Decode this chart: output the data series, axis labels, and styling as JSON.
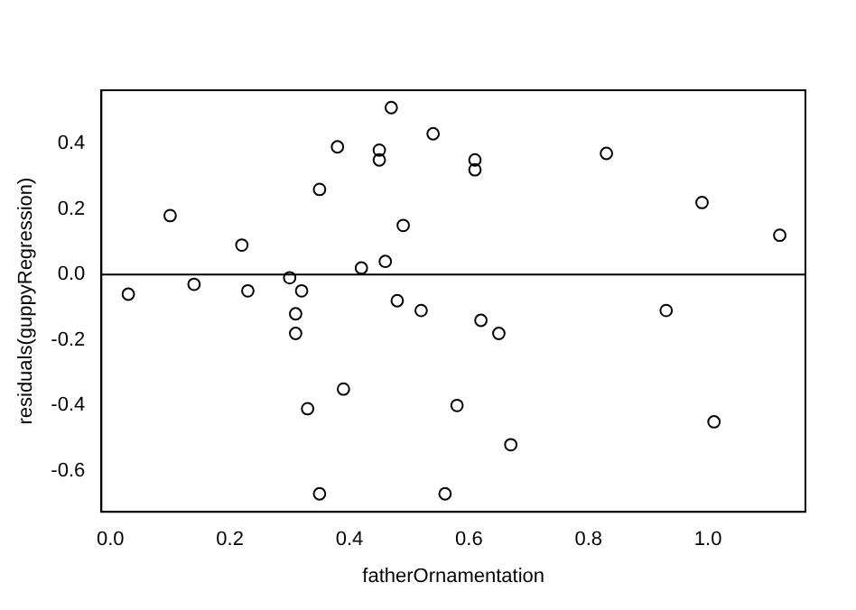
{
  "chart_data": {
    "type": "scatter",
    "xlabel": "fatherOrnamentation",
    "ylabel": "residuals(guppyRegression)",
    "x": [
      0.03,
      0.1,
      0.14,
      0.22,
      0.23,
      0.3,
      0.31,
      0.31,
      0.32,
      0.33,
      0.35,
      0.35,
      0.38,
      0.39,
      0.42,
      0.45,
      0.45,
      0.46,
      0.47,
      0.48,
      0.49,
      0.52,
      0.54,
      0.56,
      0.58,
      0.61,
      0.61,
      0.62,
      0.65,
      0.67,
      0.83,
      0.93,
      0.99,
      1.01,
      1.12
    ],
    "values": [
      -0.06,
      0.18,
      -0.03,
      0.09,
      -0.05,
      -0.01,
      -0.12,
      -0.18,
      -0.05,
      -0.41,
      0.26,
      -0.67,
      0.39,
      -0.35,
      0.02,
      0.38,
      0.35,
      0.04,
      0.51,
      -0.08,
      0.15,
      -0.11,
      0.43,
      -0.67,
      -0.4,
      0.35,
      0.32,
      -0.14,
      -0.18,
      -0.52,
      0.37,
      -0.11,
      0.22,
      -0.45,
      0.12
    ],
    "color": "#000000",
    "marker": "circle",
    "grid": false,
    "legend": false,
    "xlim": [
      -0.015,
      1.163
    ],
    "ylim": [
      -0.725,
      0.563
    ],
    "xticks": [
      {
        "value": 0,
        "label": "0.0"
      },
      0.2,
      0.4,
      0.6,
      0.8,
      {
        "value": 1,
        "label": "1.0"
      }
    ],
    "yticks": [
      -0.6,
      -0.4,
      -0.2,
      {
        "value": 0,
        "label": "0.0"
      },
      0.2,
      0.4
    ],
    "ref_lines": [
      {
        "axis": "y",
        "value": 0,
        "color": "#000000",
        "line_style": "solid"
      }
    ]
  }
}
